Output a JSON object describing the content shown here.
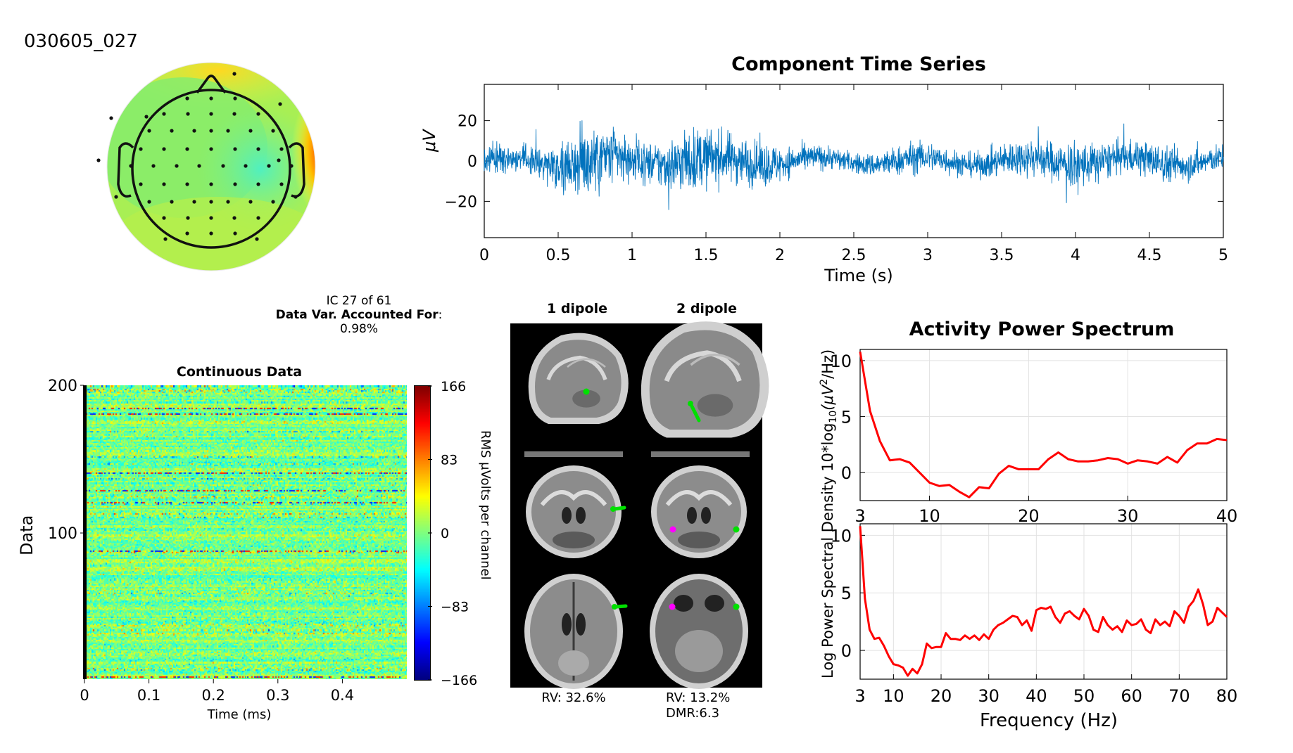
{
  "dataset_id": "030605_027",
  "ic_info": {
    "line1": "IC 27 of 61",
    "var_label": "Data Var. Accounted For",
    "var_colon": ":",
    "var_value": "0.98%"
  },
  "dipoles": {
    "col1_title": "1 dipole",
    "col2_title": "2 dipole",
    "rv1": "RV: 32.6%",
    "rv2": "RV: 13.2%",
    "dmr": "DMR:6.3",
    "colors": {
      "dipole_1": "#00e000",
      "dipole_2": "#ff00ff"
    }
  },
  "colors": {
    "series": "#0072bd",
    "spectrum": "#ff0000"
  },
  "chart_data": [
    {
      "type": "heatmap",
      "name": "topographic-scalp-map",
      "colormap": "jet",
      "description_values": {
        "max_region": "right temporal"
      }
    },
    {
      "type": "line",
      "title": "Component Time Series",
      "xlabel": "Time (s)",
      "ylabel": "μV",
      "xlim": [
        0,
        5
      ],
      "ylim": [
        -38,
        38
      ],
      "xticks": [
        0,
        0.5,
        1,
        1.5,
        2,
        2.5,
        3,
        3.5,
        4,
        4.5,
        5
      ],
      "xtick_labels": [
        "0",
        "0.5",
        "1",
        "1.5",
        "2",
        "2.5",
        "3",
        "3.5",
        "4",
        "4.5",
        "5"
      ],
      "yticks": [
        -20,
        0,
        20
      ],
      "ytick_labels": [
        "−20",
        "0",
        "20"
      ],
      "envelope": [
        [
          0,
          8
        ],
        [
          0.3,
          6
        ],
        [
          0.6,
          14
        ],
        [
          0.7,
          20
        ],
        [
          0.9,
          13
        ],
        [
          1.1,
          10
        ],
        [
          1.4,
          16
        ],
        [
          1.6,
          13
        ],
        [
          1.9,
          11
        ],
        [
          2.1,
          7
        ],
        [
          2.5,
          5
        ],
        [
          2.9,
          8
        ],
        [
          3.3,
          6
        ],
        [
          3.6,
          9
        ],
        [
          3.9,
          10
        ],
        [
          4.0,
          12
        ],
        [
          4.3,
          8
        ],
        [
          4.6,
          9
        ],
        [
          5,
          6
        ]
      ]
    },
    {
      "type": "heatmap",
      "title": "Continuous Data",
      "xlabel": "Time (ms)",
      "ylabel": "Data",
      "xlim": [
        0,
        0.5
      ],
      "ylim": [
        1,
        200
      ],
      "xticks": [
        0,
        0.1,
        0.2,
        0.3,
        0.4
      ],
      "xtick_labels": [
        "0",
        "0.1",
        "0.2",
        "0.3",
        "0.4"
      ],
      "yticks": [
        100,
        200
      ],
      "ytick_labels": [
        "100",
        "200"
      ],
      "colorbar": {
        "label": "RMS μVolts per channel",
        "ticks": [
          166,
          83,
          0,
          -83,
          -166
        ],
        "tick_labels": [
          "166",
          "83",
          "0",
          "−83",
          "−166"
        ]
      }
    },
    {
      "type": "line",
      "title": "Activity Power Spectrum",
      "ylabel": "Log Power Spectral Density 10*log10(μV²/Hz)",
      "ylabel_pre": "Log Power Spectral Density 10*log",
      "ylabel_sub": "10",
      "ylabel_mid": "(μV",
      "ylabel_sup": "2",
      "ylabel_post": "/Hz)",
      "panels": [
        {
          "xlim": [
            3,
            40
          ],
          "ylim": [
            -2.5,
            11
          ],
          "xticks": [
            3,
            10,
            20,
            30,
            40
          ],
          "xtick_labels": [
            "3",
            "10",
            "20",
            "30",
            "40"
          ],
          "yticks": [
            0,
            5,
            10
          ],
          "ytick_labels": [
            "0",
            "5",
            "10"
          ],
          "x": [
            3,
            4,
            5,
            6,
            7,
            8,
            9,
            10,
            11,
            12,
            13,
            14,
            15,
            16,
            17,
            18,
            19,
            20,
            21,
            22,
            23,
            24,
            25,
            26,
            27,
            28,
            29,
            30,
            31,
            32,
            33,
            34,
            35,
            36,
            37,
            38,
            39,
            40
          ],
          "y": [
            10.8,
            5.5,
            2.8,
            1.1,
            1.2,
            0.9,
            0.0,
            -0.9,
            -1.2,
            -1.1,
            -1.7,
            -2.2,
            -1.3,
            -1.4,
            -0.1,
            0.6,
            0.3,
            0.3,
            0.3,
            1.2,
            1.8,
            1.2,
            1.0,
            1.0,
            1.1,
            1.3,
            1.2,
            0.8,
            1.1,
            1.0,
            0.8,
            1.4,
            0.9,
            2.0,
            2.6,
            2.6,
            3.0,
            2.9
          ]
        },
        {
          "xlabel": "Frequency (Hz)",
          "xlim": [
            3,
            80
          ],
          "ylim": [
            -2.5,
            11
          ],
          "xticks": [
            3,
            10,
            20,
            30,
            40,
            50,
            60,
            70,
            80
          ],
          "xtick_labels": [
            "3",
            "10",
            "20",
            "30",
            "40",
            "50",
            "60",
            "70",
            "80"
          ],
          "yticks": [
            0,
            5,
            10
          ],
          "ytick_labels": [
            "0",
            "5",
            "10"
          ],
          "x": [
            3,
            4,
            5,
            6,
            7,
            8,
            9,
            10,
            11,
            12,
            13,
            14,
            15,
            16,
            17,
            18,
            19,
            20,
            21,
            22,
            23,
            24,
            25,
            26,
            27,
            28,
            29,
            30,
            31,
            32,
            33,
            34,
            35,
            36,
            37,
            38,
            39,
            40,
            41,
            42,
            43,
            44,
            45,
            46,
            47,
            48,
            49,
            50,
            51,
            52,
            53,
            54,
            55,
            56,
            57,
            58,
            59,
            60,
            61,
            62,
            63,
            64,
            65,
            66,
            67,
            68,
            69,
            70,
            71,
            72,
            73,
            74,
            75,
            76,
            77,
            78,
            79,
            80
          ],
          "y": [
            10.8,
            4.5,
            1.8,
            1.0,
            1.1,
            0.4,
            -0.5,
            -1.2,
            -1.3,
            -1.5,
            -2.2,
            -1.6,
            -2.0,
            -1.2,
            0.6,
            0.2,
            0.3,
            0.3,
            1.5,
            1.0,
            1.0,
            0.9,
            1.3,
            1.0,
            1.3,
            0.9,
            1.4,
            1.0,
            1.8,
            2.2,
            2.4,
            2.7,
            3.0,
            2.9,
            2.2,
            2.6,
            1.7,
            3.5,
            3.7,
            3.6,
            3.8,
            2.9,
            2.4,
            3.2,
            3.4,
            3.0,
            2.7,
            3.6,
            3.0,
            1.8,
            1.6,
            2.9,
            2.2,
            1.8,
            2.1,
            1.6,
            2.6,
            2.2,
            2.3,
            2.7,
            1.8,
            1.5,
            2.7,
            2.2,
            2.5,
            2.1,
            3.4,
            3.0,
            2.4,
            3.8,
            4.3,
            5.3,
            4.0,
            2.2,
            2.5,
            3.7,
            3.3,
            2.9
          ]
        }
      ]
    }
  ]
}
